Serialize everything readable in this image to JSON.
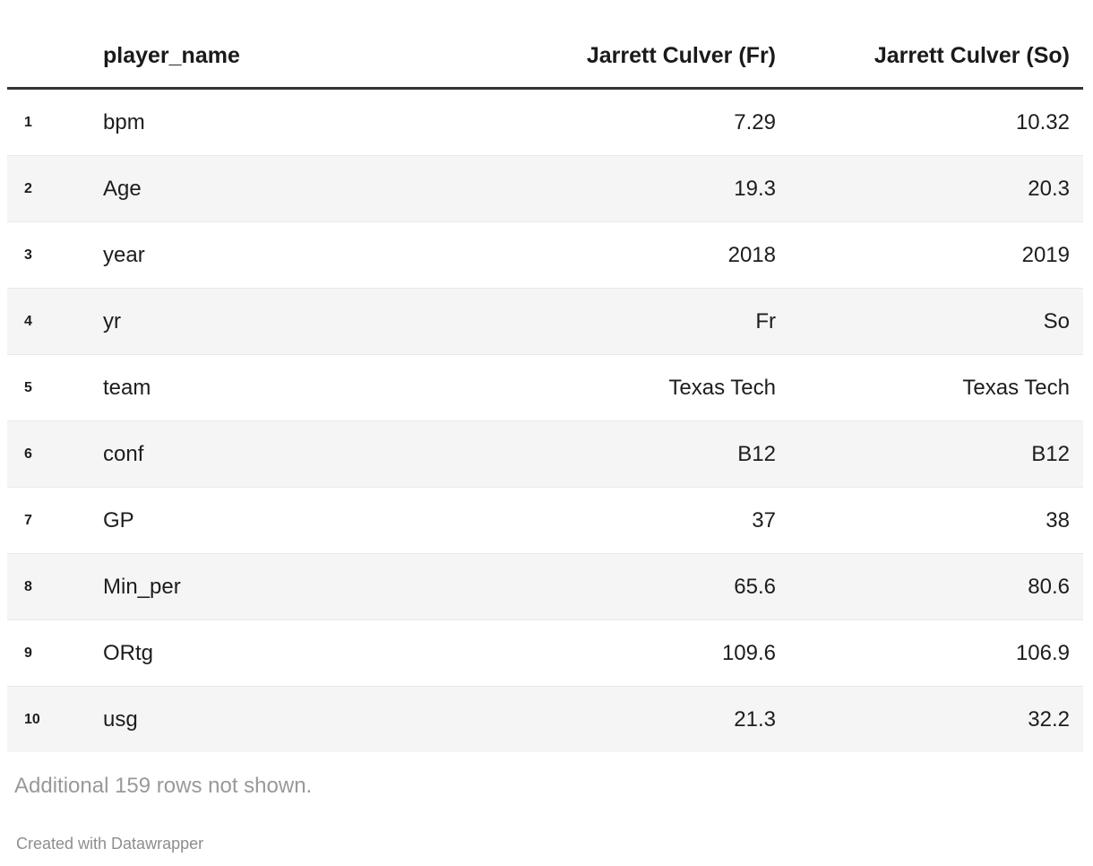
{
  "chart_data": {
    "type": "table",
    "columns": [
      {
        "id": "index",
        "label": "",
        "align": "left"
      },
      {
        "id": "name",
        "label": "player_name",
        "align": "left"
      },
      {
        "id": "fr",
        "label": "Jarrett Culver (Fr)",
        "align": "right"
      },
      {
        "id": "so",
        "label": "Jarrett Culver (So)",
        "align": "right"
      }
    ],
    "rows": [
      {
        "index": "1",
        "name": "bpm",
        "fr": "7.29",
        "so": "10.32"
      },
      {
        "index": "2",
        "name": "Age",
        "fr": "19.3",
        "so": "20.3"
      },
      {
        "index": "3",
        "name": "year",
        "fr": "2018",
        "so": "2019"
      },
      {
        "index": "4",
        "name": "yr",
        "fr": "Fr",
        "so": "So"
      },
      {
        "index": "5",
        "name": "team",
        "fr": "Texas Tech",
        "so": "Texas Tech"
      },
      {
        "index": "6",
        "name": "conf",
        "fr": "B12",
        "so": "B12"
      },
      {
        "index": "7",
        "name": "GP",
        "fr": "37",
        "so": "38"
      },
      {
        "index": "8",
        "name": "Min_per",
        "fr": "65.6",
        "so": "80.6"
      },
      {
        "index": "9",
        "name": "ORtg",
        "fr": "109.6",
        "so": "106.9"
      },
      {
        "index": "10",
        "name": "usg",
        "fr": "21.3",
        "so": "32.2"
      }
    ]
  },
  "footer": {
    "note": "Additional 159 rows not shown.",
    "attribution": "Created with Datawrapper"
  },
  "colors": {
    "background": "#ffffff",
    "text": "#1d1d1d",
    "header_rule": "#333333",
    "row_stripe": "#f5f5f5",
    "row_divider": "#e9e9e9",
    "note_text": "#999999",
    "attribution_text": "#8e8e8e"
  }
}
